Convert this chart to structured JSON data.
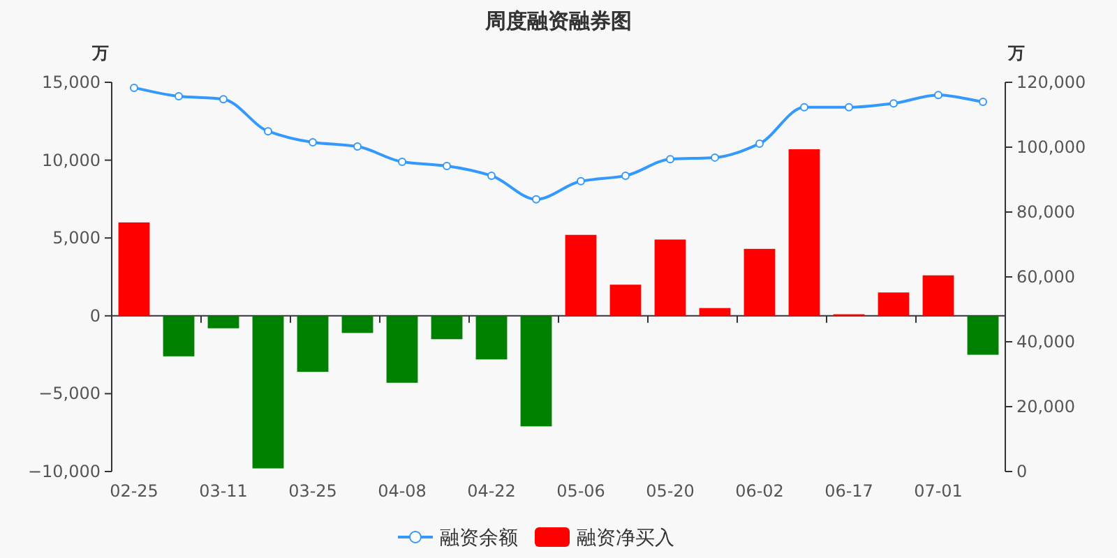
{
  "chart_data": {
    "type": "bar",
    "title": "周度融资融券图",
    "ylabel": "万",
    "y2label": "万",
    "categories": [
      "02-25",
      null,
      "03-11",
      null,
      "03-25",
      null,
      "04-08",
      null,
      "04-22",
      null,
      "05-06",
      null,
      "05-20",
      null,
      "06-02",
      null,
      "06-17",
      null,
      "07-01",
      null
    ],
    "series": [
      {
        "name": "融资余额",
        "type": "line",
        "axis": "y2",
        "color": "#3399ff",
        "marker": "circle",
        "values": [
          118300,
          115700,
          114800,
          104900,
          101500,
          100200,
          95500,
          94200,
          91200,
          83900,
          89500,
          91200,
          96300,
          96800,
          101100,
          112300,
          112300,
          113500,
          116100,
          114000
        ]
      },
      {
        "name": "融资净买入",
        "color": "#ff0000",
        "colors": [
          "#ff0000",
          "#008000",
          "#008000",
          "#008000",
          "#008000",
          "#008000",
          "#008000",
          "#008000",
          "#008000",
          "#008000",
          "#ff0000",
          "#ff0000",
          "#ff0000",
          "#ff0000",
          "#ff0000",
          "#ff0000",
          "#ff0000",
          "#ff0000",
          "#ff0000",
          "#008000"
        ],
        "values": [
          6000,
          -2600,
          -800,
          -9800,
          -3600,
          -1100,
          -4300,
          -1500,
          -2800,
          -7100,
          5200,
          2000,
          4900,
          500,
          4300,
          10700,
          100,
          1500,
          2600,
          -2500
        ]
      }
    ],
    "ylim": [
      -10000,
      15000
    ],
    "yticks": [
      {
        "value": -10000,
        "label": "−10,000"
      },
      {
        "value": -5000,
        "label": "−5,000"
      },
      {
        "value": 0,
        "label": "0"
      },
      {
        "value": 5000,
        "label": "5,000"
      },
      {
        "value": 10000,
        "label": "10,000"
      },
      {
        "value": 15000,
        "label": "15,000"
      }
    ],
    "y2lim": [
      0,
      120000
    ],
    "y2ticks": [
      0,
      {
        "value": 20000,
        "label": "20,000"
      },
      {
        "value": 40000,
        "label": "40,000"
      },
      {
        "value": 60000,
        "label": "60,000"
      },
      {
        "value": 80000,
        "label": "80,000"
      },
      {
        "value": 100000,
        "label": "100,000"
      },
      {
        "value": 120000,
        "label": "120,000"
      }
    ],
    "legend": "bottom"
  }
}
